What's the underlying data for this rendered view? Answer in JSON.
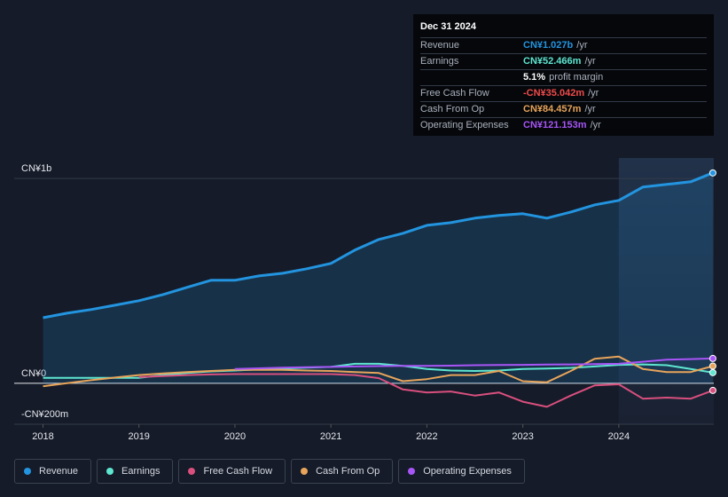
{
  "chart_data": {
    "type": "line",
    "x": [
      2018,
      2018.25,
      2018.5,
      2018.75,
      2019,
      2019.25,
      2019.5,
      2019.75,
      2020,
      2020.25,
      2020.5,
      2020.75,
      2021,
      2021.25,
      2021.5,
      2021.75,
      2022,
      2022.25,
      2022.5,
      2022.75,
      2023,
      2023.25,
      2023.5,
      2023.75,
      2024,
      2024.25,
      2024.5,
      2024.75,
      2024.98
    ],
    "xlim": [
      2017.7,
      2024.99
    ],
    "xticks": [
      2018,
      2019,
      2020,
      2021,
      2022,
      2023,
      2024
    ],
    "ylim": [
      -200,
      1100
    ],
    "yticks": [
      {
        "value": -200,
        "label": "-CN¥200m"
      },
      {
        "value": 0,
        "label": "CN¥0"
      },
      {
        "value": 1000,
        "label": "CN¥1b"
      }
    ],
    "series": [
      {
        "name": "Revenue",
        "color": "#2394df",
        "values": [
          320,
          342,
          360,
          381,
          403,
          433,
          468,
          503,
          503,
          524,
          537,
          559,
          585,
          650,
          702,
          732,
          771,
          784,
          806,
          819,
          828,
          806,
          836,
          871,
          893,
          958,
          971,
          984,
          1027
        ]
      },
      {
        "name": "Earnings",
        "color": "#5ee6d0",
        "values": [
          26,
          26,
          26,
          26,
          26,
          40,
          50,
          58,
          62,
          68,
          72,
          76,
          80,
          95,
          95,
          85,
          70,
          62,
          60,
          62,
          70,
          72,
          75,
          82,
          90,
          92,
          88,
          70,
          52
        ]
      },
      {
        "name": "Free Cash Flow",
        "color": "#d94f7e",
        "values": [
          null,
          null,
          null,
          null,
          30,
          35,
          40,
          43,
          45,
          45,
          45,
          45,
          45,
          40,
          25,
          -30,
          -45,
          -40,
          -60,
          -45,
          -90,
          -115,
          -60,
          -10,
          -5,
          -75,
          -70,
          -75,
          -35
        ]
      },
      {
        "name": "Cash From Op",
        "color": "#e8a45a",
        "values": [
          -15,
          0,
          15,
          28,
          40,
          48,
          55,
          60,
          65,
          65,
          65,
          62,
          60,
          55,
          50,
          10,
          20,
          40,
          40,
          60,
          10,
          5,
          60,
          120,
          130,
          70,
          55,
          55,
          84
        ]
      },
      {
        "name": "Operating Expenses",
        "color": "#a855f7",
        "values": [
          null,
          null,
          null,
          null,
          null,
          null,
          null,
          null,
          70,
          73,
          76,
          78,
          80,
          82,
          84,
          85,
          85,
          86,
          88,
          89,
          90,
          91,
          92,
          94,
          95,
          105,
          115,
          118,
          121
        ]
      }
    ],
    "grid": true,
    "tooltip": {
      "date": "Dec 31 2024",
      "rows": [
        {
          "label": "Revenue",
          "value": "CN¥1.027b",
          "suffix": "/yr",
          "color": "#2394df"
        },
        {
          "label": "Earnings",
          "value": "CN¥52.466m",
          "suffix": "/yr",
          "color": "#5ee6d0"
        },
        {
          "label": "",
          "value": "5.1%",
          "suffix": "profit margin",
          "color": "#ffffff"
        },
        {
          "label": "Free Cash Flow",
          "value": "-CN¥35.042m",
          "suffix": "/yr",
          "color": "#f04b4b"
        },
        {
          "label": "Cash From Op",
          "value": "CN¥84.457m",
          "suffix": "/yr",
          "color": "#e8a45a"
        },
        {
          "label": "Operating Expenses",
          "value": "CN¥121.153m",
          "suffix": "/yr",
          "color": "#a855f7"
        }
      ]
    }
  }
}
